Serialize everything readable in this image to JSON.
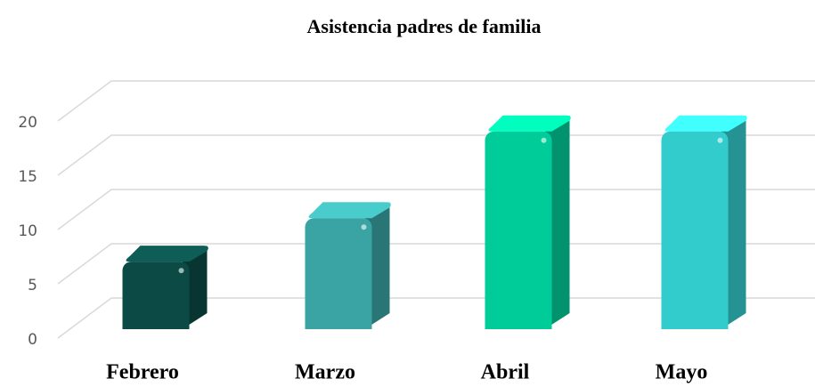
{
  "chart_data": {
    "type": "bar3d",
    "title": "Asistencia padres de familia",
    "categories": [
      "Febrero",
      "Marzo",
      "Abril",
      "Mayo"
    ],
    "values": [
      7,
      11,
      19,
      19
    ],
    "colors": [
      "#0b4a45",
      "#3aa3a3",
      "#00cc99",
      "#33cccc"
    ],
    "ylim": [
      0,
      20
    ],
    "yticks": [
      0,
      5,
      10,
      15,
      20
    ],
    "grid": true
  }
}
